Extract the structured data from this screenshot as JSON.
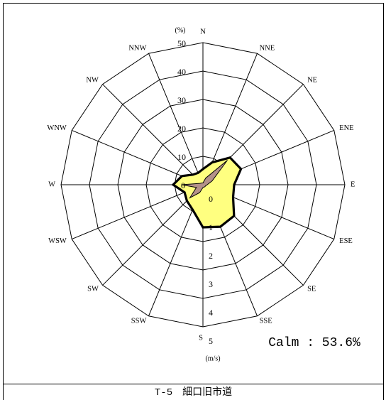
{
  "chart_data": {
    "type": "area",
    "projection": "polar",
    "directions": [
      "N",
      "NNE",
      "NE",
      "ENE",
      "E",
      "ESE",
      "SE",
      "SSE",
      "S",
      "SSW",
      "SW",
      "WSW",
      "W",
      "WNW",
      "NW",
      "NNW"
    ],
    "radial_axes": [
      {
        "label": "(%)",
        "ticks": [
          0,
          10,
          20,
          30,
          40,
          50
        ],
        "range": [
          0,
          50
        ]
      },
      {
        "label": "(m/s)",
        "ticks": [
          0,
          1,
          2,
          3,
          4,
          5
        ],
        "range": [
          0,
          5
        ]
      }
    ],
    "series": [
      {
        "axis": 1,
        "values": [
          0.55,
          0.85,
          1.35,
          1.45,
          1.1,
          1.15,
          1.55,
          1.6,
          1.5,
          0.95,
          0.8,
          0.7,
          1.05,
          0.8,
          0.5,
          0.45
        ],
        "fill": "#ffff80",
        "stroke": "#000000"
      },
      {
        "axis": 0,
        "values": [
          0.6,
          2.5,
          12.2,
          3.5,
          1.5,
          1.0,
          1.0,
          0.9,
          1.0,
          3.0,
          6.5,
          2.5,
          7.5,
          1.2,
          0.8,
          0.7
        ],
        "fill": "#b3918a",
        "stroke": "#000000"
      }
    ],
    "grid": true,
    "calm_text": "Calm : 53.6%"
  },
  "caption": "T-5　細口旧市道"
}
